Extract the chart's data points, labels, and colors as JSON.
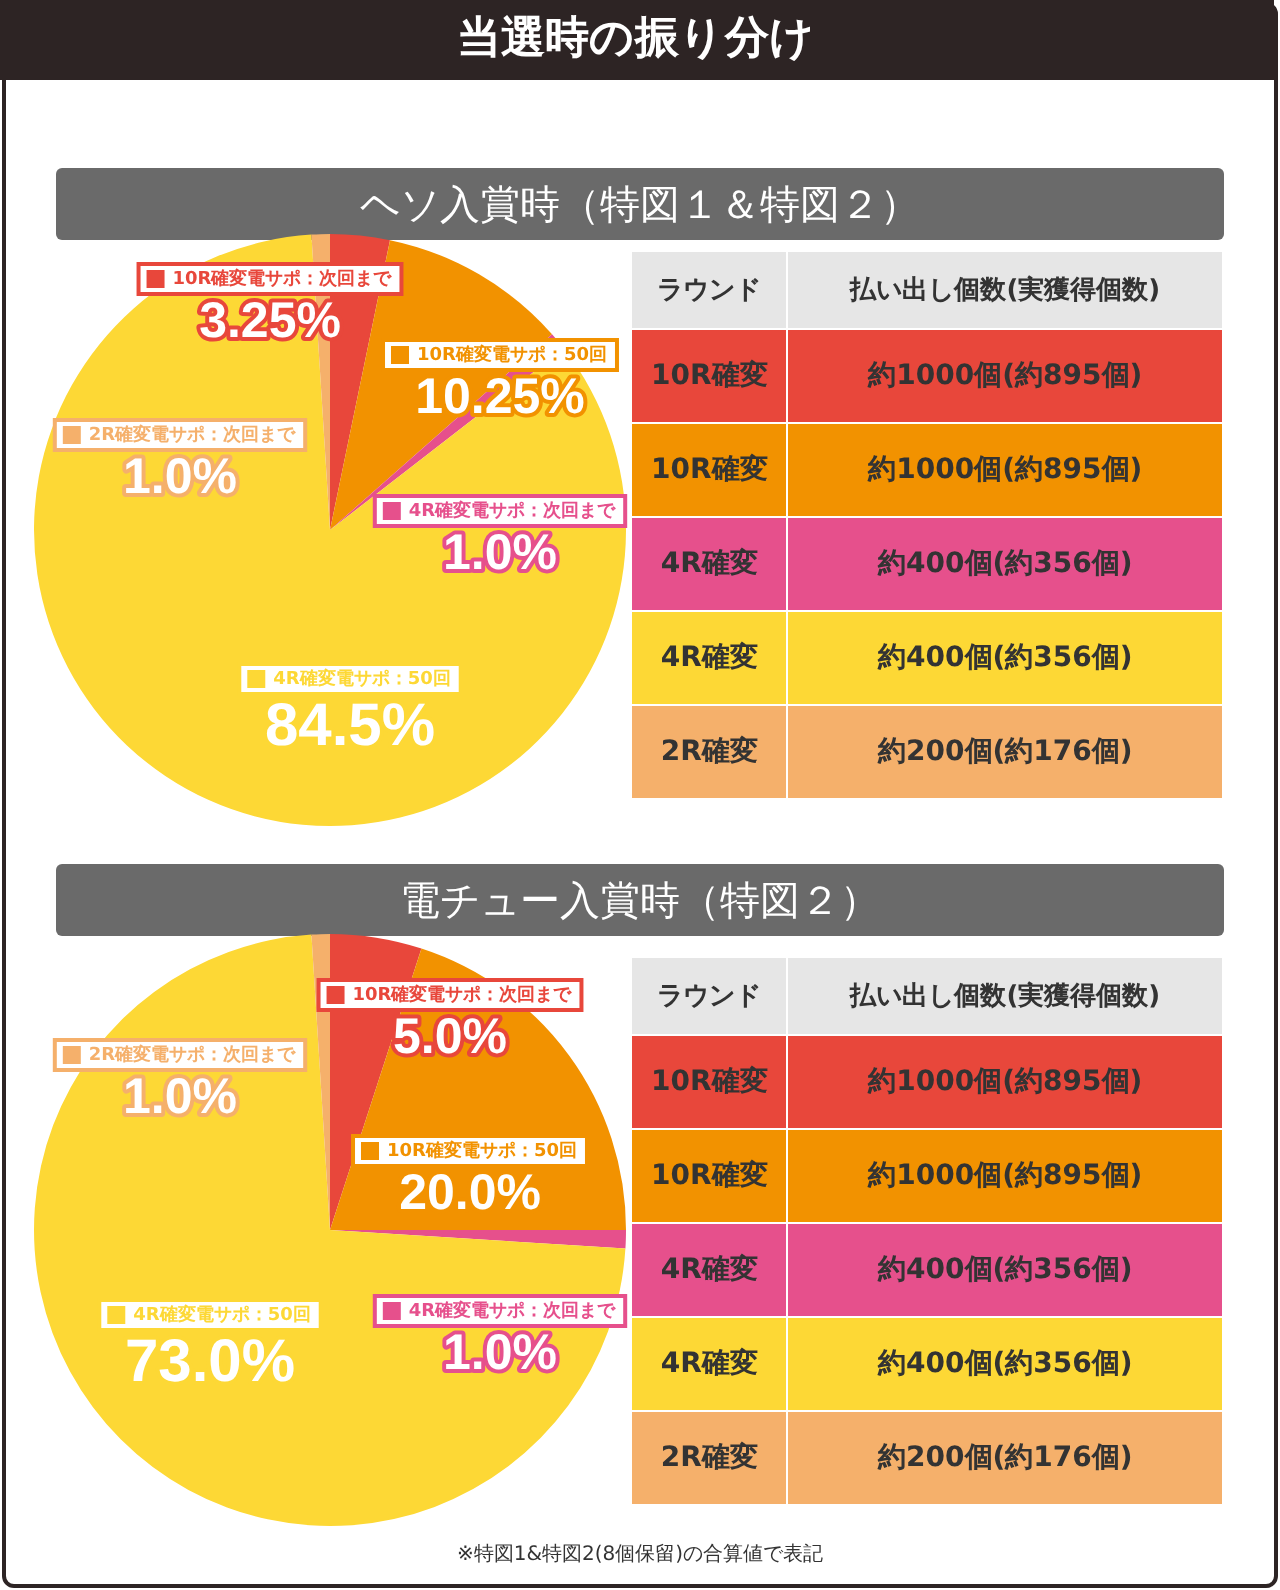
{
  "chart_data": [
    {
      "type": "pie",
      "title": "当選時の振り分け",
      "subtitle": "ヘソ入賞時（特図１＆特図２）",
      "categories": [
        "10R確変電サポ：次回まで",
        "10R確変電サポ：50回",
        "4R確変電サポ：次回まで",
        "4R確変電サポ：50回",
        "2R確変電サポ：次回まで"
      ],
      "values": [
        3.25,
        10.25,
        1.0,
        84.5,
        1.0
      ],
      "value_labels": [
        "3.25%",
        "10.25%",
        "1.0%",
        "84.5%",
        "1.0%"
      ],
      "colors": [
        "#e8473b",
        "#f29200",
        "#e6508c",
        "#fdd835",
        "#f5b06b"
      ],
      "legend": "left"
    },
    {
      "type": "other",
      "categories": [
        "10R確変",
        "10R確変",
        "4R確変",
        "4R確変",
        "2R確変"
      ],
      "annotations": [
        "ラウンド",
        "払い出し個数(実獲得個数)",
        "約1000個(約895個)",
        "約1000個(約895個)",
        "約400個(約356個)",
        "約400個(約356個)",
        "約200個(約176個)"
      ],
      "colors": [
        "#e8473b",
        "#f29200",
        "#e6508c",
        "#fdd835",
        "#f5b06b"
      ]
    },
    {
      "type": "pie",
      "title": "電チュー入賞時（特図２）",
      "categories": [
        "10R確変電サポ：次回まで",
        "10R確変電サポ：50回",
        "4R確変電サポ：次回まで",
        "4R確変電サポ：50回",
        "2R確変電サポ：次回まで"
      ],
      "values": [
        5.0,
        20.0,
        1.0,
        73.0,
        1.0
      ],
      "value_labels": [
        "5.0%",
        "20.0%",
        "1.0%",
        "73.0%",
        "1.0%"
      ],
      "colors": [
        "#e8473b",
        "#f29200",
        "#e6508c",
        "#fdd835",
        "#f5b06b"
      ],
      "legend": "left"
    },
    {
      "type": "other",
      "categories": [
        "10R確変",
        "10R確変",
        "4R確変",
        "4R確変",
        "2R確変"
      ],
      "annotations": [
        "ラウンド",
        "払い出し個数(実獲得個数)",
        "約1000個(約895個)",
        "約1000個(約895個)",
        "約400個(約356個)",
        "約400個(約356個)",
        "約200個(約176個)",
        "※特図1&特図2(8個保留)の合算値で表記"
      ],
      "colors": [
        "#e8473b",
        "#f29200",
        "#e6508c",
        "#fdd835",
        "#f5b06b"
      ]
    }
  ]
}
